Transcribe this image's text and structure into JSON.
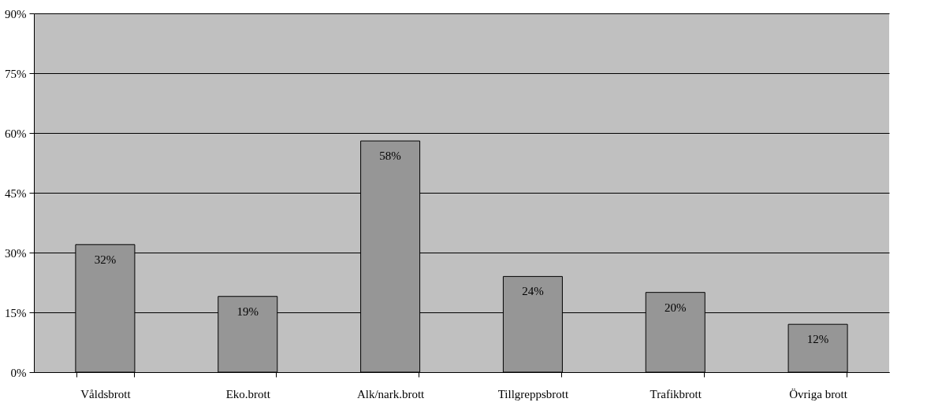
{
  "chart_data": {
    "type": "bar",
    "categories": [
      "Våldsbrott",
      "Eko.brott",
      "Alk/nark.brott",
      "Tillgreppsbrott",
      "Trafikbrott",
      "Övriga brott"
    ],
    "values": [
      32,
      19,
      58,
      24,
      20,
      12
    ],
    "value_labels": [
      "32%",
      "19%",
      "58%",
      "24%",
      "20%",
      "12%"
    ],
    "color": "#969696",
    "ylim": [
      0,
      90
    ],
    "yticks": [
      {
        "value": 0,
        "label": "0%"
      },
      {
        "value": 15,
        "label": "15%"
      },
      {
        "value": 30,
        "label": "30%"
      },
      {
        "value": 45,
        "label": "45%"
      },
      {
        "value": 60,
        "label": "60%"
      },
      {
        "value": 75,
        "label": "75%"
      },
      {
        "value": 90,
        "label": "90%"
      }
    ],
    "grid": "y"
  }
}
